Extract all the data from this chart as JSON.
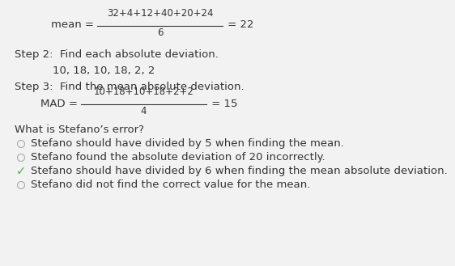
{
  "bg_color": "#f2f2f2",
  "text_color": "#333333",
  "green_color": "#4caf50",
  "gray_color": "#aaaaaa",
  "font_size": 9.5,
  "font_size_small": 8.5,
  "line1_label": "mean = ",
  "line1_numerator": "32+4+12+40+20+24",
  "line1_denominator": "6",
  "line1_result": " = 22",
  "step2_header": "Step 2:  Find each absolute deviation.",
  "step2_values": "10, 18, 10, 18, 2, 2",
  "step3_header": "Step 3:  Find the mean absolute deviation.",
  "mad_label": "MAD = ",
  "mad_numerator": "10+18+10+18+2+2",
  "mad_denominator": "4",
  "mad_result": " = 15",
  "question": "What is Stefano’s error?",
  "choices": [
    {
      "text": "Stefano should have divided by 5 when finding the mean.",
      "correct": false
    },
    {
      "text": "Stefano found the absolute deviation of 20 incorrectly.",
      "correct": false
    },
    {
      "text": "Stefano should have divided by 6 when finding the mean absolute deviation.",
      "correct": true
    },
    {
      "text": "Stefano did not find the correct value for the mean.",
      "correct": false
    }
  ]
}
